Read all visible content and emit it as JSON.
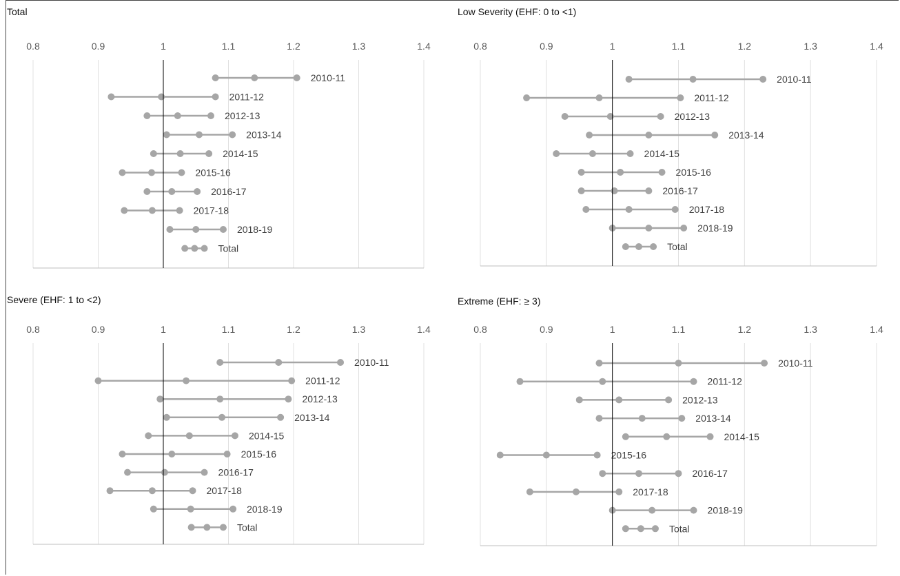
{
  "colors": {
    "series": "#a6a6a6",
    "reference_line": "#000000",
    "grid": "#e0e0e0"
  },
  "chart_data": [
    {
      "type": "dot-interval",
      "title": "Total",
      "xlim": [
        0.8,
        1.4
      ],
      "ticks": [
        "0.8",
        "0.9",
        "1",
        "1.1",
        "1.2",
        "1.3",
        "1.4"
      ],
      "reference": 1,
      "categories": [
        "2010-11",
        "2011-12",
        "2012-13",
        "2013-14",
        "2014-15",
        "2015-16",
        "2016-17",
        "2017-18",
        "2018-19",
        "Total"
      ],
      "lower": [
        1.08,
        0.92,
        0.975,
        1.005,
        0.985,
        0.937,
        0.975,
        0.94,
        1.01,
        1.033
      ],
      "estimate": [
        1.14,
        0.997,
        1.022,
        1.055,
        1.026,
        0.982,
        1.013,
        0.983,
        1.05,
        1.048
      ],
      "upper": [
        1.205,
        1.08,
        1.073,
        1.106,
        1.07,
        1.028,
        1.052,
        1.025,
        1.092,
        1.063
      ]
    },
    {
      "type": "dot-interval",
      "title": "Low Severity (EHF: 0 to <1)",
      "xlim": [
        0.8,
        1.4
      ],
      "ticks": [
        "0.8",
        "0.9",
        "1",
        "1.1",
        "1.2",
        "1.3",
        "1.4"
      ],
      "reference": 1,
      "categories": [
        "2010-11",
        "2011-12",
        "2012-13",
        "2013-14",
        "2014-15",
        "2015-16",
        "2016-17",
        "2017-18",
        "2018-19",
        "Total"
      ],
      "lower": [
        1.025,
        0.87,
        0.928,
        0.965,
        0.915,
        0.953,
        0.953,
        0.96,
        1.0,
        1.02
      ],
      "estimate": [
        1.122,
        0.98,
        0.997,
        1.055,
        0.97,
        1.012,
        1.003,
        1.025,
        1.055,
        1.04
      ],
      "upper": [
        1.228,
        1.103,
        1.073,
        1.155,
        1.027,
        1.075,
        1.055,
        1.095,
        1.108,
        1.062
      ]
    },
    {
      "type": "dot-interval",
      "title": "Severe (EHF: 1 to <2)",
      "xlim": [
        0.8,
        1.4
      ],
      "ticks": [
        "0.8",
        "0.9",
        "1",
        "1.1",
        "1.2",
        "1.3",
        "1.4"
      ],
      "reference": 1,
      "categories": [
        "2010-11",
        "2011-12",
        "2012-13",
        "2013-14",
        "2014-15",
        "2015-16",
        "2016-17",
        "2017-18",
        "2018-19",
        "Total"
      ],
      "lower": [
        1.087,
        0.9,
        0.995,
        1.005,
        0.977,
        0.937,
        0.945,
        0.918,
        0.985,
        1.043
      ],
      "estimate": [
        1.177,
        1.035,
        1.087,
        1.09,
        1.04,
        1.013,
        1.002,
        0.983,
        1.042,
        1.067
      ],
      "upper": [
        1.272,
        1.197,
        1.192,
        1.18,
        1.11,
        1.098,
        1.063,
        1.045,
        1.107,
        1.092
      ]
    },
    {
      "type": "dot-interval",
      "title": "Extreme (EHF: ≥ 3)",
      "xlim": [
        0.8,
        1.4
      ],
      "ticks": [
        "0.8",
        "0.9",
        "1",
        "1.1",
        "1.2",
        "1.3",
        "1.4"
      ],
      "reference": 1,
      "categories": [
        "2010-11",
        "2011-12",
        "2012-13",
        "2013-14",
        "2014-15",
        "2015-16",
        "2016-17",
        "2017-18",
        "2018-19",
        "Total"
      ],
      "lower": [
        0.98,
        0.86,
        0.95,
        0.98,
        1.02,
        0.83,
        0.985,
        0.875,
        1.0,
        1.02
      ],
      "estimate": [
        1.1,
        0.985,
        1.01,
        1.045,
        1.082,
        0.9,
        1.04,
        0.945,
        1.06,
        1.043
      ],
      "upper": [
        1.23,
        1.123,
        1.085,
        1.105,
        1.148,
        0.977,
        1.1,
        1.01,
        1.123,
        1.065
      ]
    }
  ]
}
